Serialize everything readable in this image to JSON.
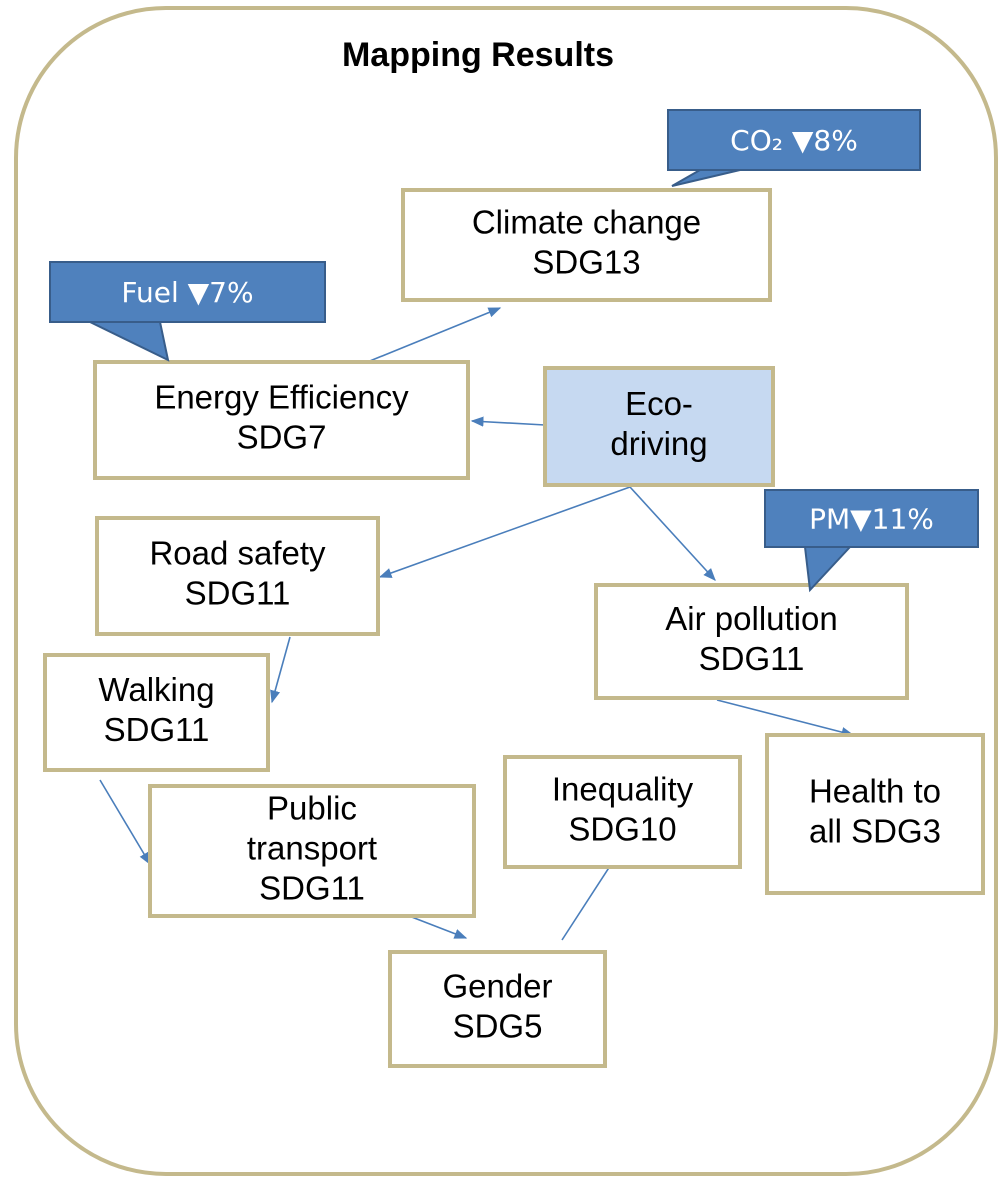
{
  "title": "Mapping Results",
  "nodes": [
    {
      "lines": [
        "Climate change",
        "SDG13"
      ]
    },
    {
      "lines": [
        "Energy Efficiency",
        "SDG7"
      ]
    },
    {
      "lines": [
        "Eco-",
        "driving"
      ]
    },
    {
      "lines": [
        "Road safety",
        "SDG11"
      ]
    },
    {
      "lines": [
        "Air pollution",
        "SDG11"
      ]
    },
    {
      "lines": [
        "Walking",
        "SDG11"
      ]
    },
    {
      "lines": [
        "Health to",
        "all SDG3"
      ]
    },
    {
      "lines": [
        "Public",
        "transport",
        "SDG11"
      ]
    },
    {
      "lines": [
        "Inequality",
        "SDG10"
      ]
    },
    {
      "lines": [
        "Gender",
        "SDG5"
      ]
    }
  ],
  "callouts": [
    "CO₂ ▼8%",
    "Fuel ▼7%",
    "PM▼11%"
  ]
}
